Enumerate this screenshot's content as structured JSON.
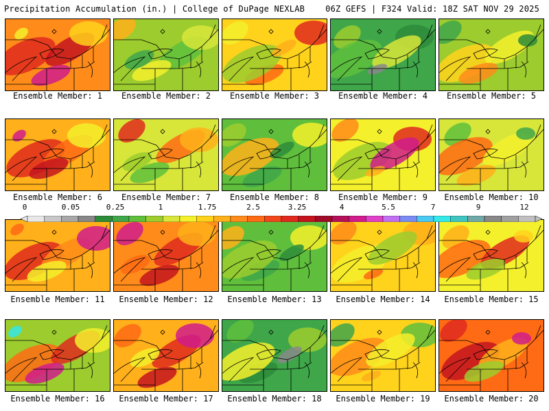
{
  "header": {
    "title": "Precipitation Accumulation (in.) | College of DuPage NEXLAB",
    "run_info": "06Z GEFS | F324 Valid: 18Z SAT NOV 29 2025"
  },
  "colorbar": {
    "labels": [
      "0",
      "0.05",
      "0.25",
      "1",
      "1.75",
      "2.5",
      "3.25",
      "4",
      "5.5",
      "7",
      "9",
      "12"
    ],
    "colors": [
      "#e8e8e8",
      "#c8c8c8",
      "#a8a8a8",
      "#888888",
      "#2e8b3a",
      "#3fa64a",
      "#5fbf3c",
      "#9ccc2e",
      "#d8e63a",
      "#f4f02c",
      "#ffd21c",
      "#ffb01a",
      "#ff8c1a",
      "#ff6a14",
      "#f0481a",
      "#e02a1e",
      "#c4141e",
      "#a00c28",
      "#b4105a",
      "#d01c8c",
      "#e040c8",
      "#c070f0",
      "#7a8cf4",
      "#4cc8f4",
      "#34e8e8",
      "#40c4c0",
      "#70a8a8",
      "#888888",
      "#a0a0a0",
      "#c0c0c0"
    ]
  },
  "members": [
    {
      "label": "Ensemble Member: 1",
      "bg": "#ff8c1a",
      "blobs": [
        "#e02a1e",
        "#c4141e",
        "#d01c8c",
        "#ffd21c",
        "#f4f02c"
      ]
    },
    {
      "label": "Ensemble Member: 2",
      "bg": "#9ccc2e",
      "blobs": [
        "#5fbf3c",
        "#f4f02c",
        "#d8e63a",
        "#ffb01a",
        "#3fa64a"
      ]
    },
    {
      "label": "Ensemble Member: 3",
      "bg": "#ffd21c",
      "blobs": [
        "#ff6a14",
        "#e02a1e",
        "#f4f02c",
        "#9ccc2e",
        "#ffb01a"
      ]
    },
    {
      "label": "Ensemble Member: 4",
      "bg": "#3fa64a",
      "blobs": [
        "#2e8b3a",
        "#9ccc2e",
        "#5fbf3c",
        "#d8e63a",
        "#888888"
      ]
    },
    {
      "label": "Ensemble Member: 5",
      "bg": "#9ccc2e",
      "blobs": [
        "#3fa64a",
        "#ffd21c",
        "#f4f02c",
        "#ff8c1a",
        "#2e8b3a"
      ]
    },
    {
      "label": "Ensemble Member: 6",
      "bg": "#ffb01a",
      "blobs": [
        "#e02a1e",
        "#ff6a14",
        "#c4141e",
        "#f4f02c",
        "#d01c8c"
      ]
    },
    {
      "label": "Ensemble Member: 7",
      "bg": "#d8e63a",
      "blobs": [
        "#ff6a14",
        "#5fbf3c",
        "#ffb01a",
        "#e02a1e",
        "#9ccc2e"
      ]
    },
    {
      "label": "Ensemble Member: 8",
      "bg": "#5fbf3c",
      "blobs": [
        "#3fa64a",
        "#f4f02c",
        "#9ccc2e",
        "#ffb01a",
        "#2e8b3a"
      ]
    },
    {
      "label": "Ensemble Member: 9",
      "bg": "#f4f02c",
      "blobs": [
        "#e02a1e",
        "#ff8c1a",
        "#9ccc2e",
        "#d01c8c",
        "#ffb01a"
      ]
    },
    {
      "label": "Ensemble Member: 10",
      "bg": "#d8e63a",
      "blobs": [
        "#5fbf3c",
        "#ff6a14",
        "#f4f02c",
        "#ffb01a",
        "#3fa64a"
      ]
    },
    {
      "label": "Ensemble Member: 11",
      "bg": "#ffb01a",
      "blobs": [
        "#e02a1e",
        "#ff8c1a",
        "#f4f02c",
        "#d01c8c",
        "#ff6a14"
      ]
    },
    {
      "label": "Ensemble Member: 12",
      "bg": "#ff8c1a",
      "blobs": [
        "#e02a1e",
        "#c4141e",
        "#ffb01a",
        "#d01c8c",
        "#ff6a14"
      ]
    },
    {
      "label": "Ensemble Member: 13",
      "bg": "#5fbf3c",
      "blobs": [
        "#3fa64a",
        "#f4f02c",
        "#ffb01a",
        "#9ccc2e",
        "#2e8b3a"
      ]
    },
    {
      "label": "Ensemble Member: 14",
      "bg": "#ffd21c",
      "blobs": [
        "#ffb01a",
        "#ff8c1a",
        "#f4f02c",
        "#9ccc2e",
        "#ff6a14"
      ]
    },
    {
      "label": "Ensemble Member: 15",
      "bg": "#f4f02c",
      "blobs": [
        "#ffb01a",
        "#ff6a14",
        "#e02a1e",
        "#9ccc2e",
        "#ffd21c"
      ]
    },
    {
      "label": "Ensemble Member: 16",
      "bg": "#9ccc2e",
      "blobs": [
        "#ff6a14",
        "#e02a1e",
        "#d01c8c",
        "#f4f02c",
        "#34e8e8"
      ]
    },
    {
      "label": "Ensemble Member: 17",
      "bg": "#ffb01a",
      "blobs": [
        "#e02a1e",
        "#c4141e",
        "#d01c8c",
        "#ff6a14",
        "#f4f02c"
      ]
    },
    {
      "label": "Ensemble Member: 18",
      "bg": "#3fa64a",
      "blobs": [
        "#2e8b3a",
        "#9ccc2e",
        "#5fbf3c",
        "#f4f02c",
        "#888888"
      ]
    },
    {
      "label": "Ensemble Member: 19",
      "bg": "#ffd21c",
      "blobs": [
        "#5fbf3c",
        "#3fa64a",
        "#ff8c1a",
        "#f4f02c",
        "#ffb01a"
      ]
    },
    {
      "label": "Ensemble Member: 20",
      "bg": "#ff6a14",
      "blobs": [
        "#e02a1e",
        "#c4141e",
        "#ffb01a",
        "#9ccc2e",
        "#d01c8c"
      ]
    }
  ]
}
